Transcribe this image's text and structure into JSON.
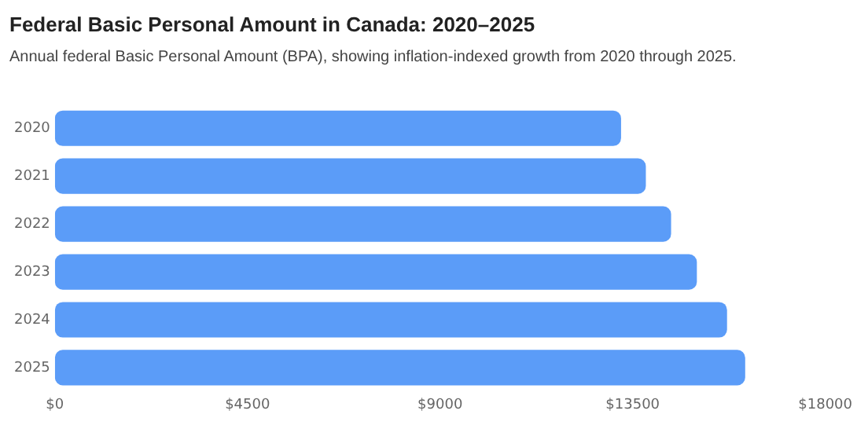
{
  "chart_data": {
    "type": "bar",
    "orientation": "horizontal",
    "title": "Federal Basic Personal Amount in Canada: 2020–2025",
    "subtitle": "Annual federal Basic Personal Amount (BPA), showing inflation-indexed growth from 2020 through 2025.",
    "categories": [
      "2020",
      "2021",
      "2022",
      "2023",
      "2024",
      "2025"
    ],
    "values": [
      13229,
      13808,
      14398,
      15000,
      15705,
      16129
    ],
    "color": "#5b9cf8",
    "xlim": [
      0,
      18000
    ],
    "xticks": [
      {
        "value": 0,
        "label": "$0"
      },
      {
        "value": 4500,
        "label": "$4500"
      },
      {
        "value": 9000,
        "label": "$9000"
      },
      {
        "value": 13500,
        "label": "$13500"
      },
      {
        "value": 18000,
        "label": "$18000"
      }
    ],
    "legend": false
  }
}
